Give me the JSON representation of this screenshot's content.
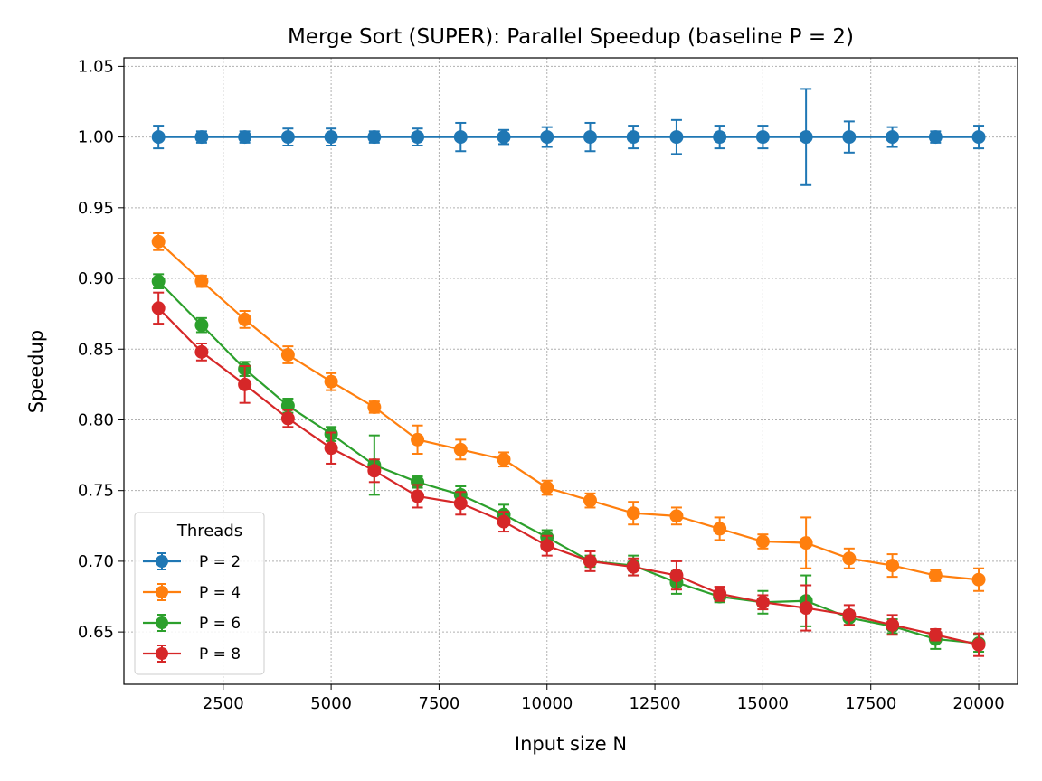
{
  "chart_data": {
    "type": "line",
    "title": "Merge Sort (SUPER): Parallel Speedup (baseline P = 2)",
    "xlabel": "Input size N",
    "ylabel": "Speedup",
    "xlim": [
      200,
      20900
    ],
    "ylim": [
      0.613,
      1.056
    ],
    "xticks": [
      2500,
      5000,
      7500,
      10000,
      12500,
      15000,
      17500,
      20000
    ],
    "xtick_labels": [
      "2500",
      "5000",
      "7500",
      "10000",
      "12500",
      "15000",
      "17500",
      "20000"
    ],
    "yticks": [
      0.65,
      0.7,
      0.75,
      0.8,
      0.85,
      0.9,
      0.95,
      1.0,
      1.05
    ],
    "ytick_labels": [
      "0.65",
      "0.70",
      "0.75",
      "0.80",
      "0.85",
      "0.90",
      "0.95",
      "1.00",
      "1.05"
    ],
    "grid": true,
    "legend_title": "Threads",
    "legend_position": "lower-left",
    "x": [
      1000,
      2000,
      3000,
      4000,
      5000,
      6000,
      7000,
      8000,
      9000,
      10000,
      11000,
      12000,
      13000,
      14000,
      15000,
      16000,
      17000,
      18000,
      19000,
      20000
    ],
    "series": [
      {
        "name": "P = 2",
        "color": "#1f77b4",
        "values": [
          1.0,
          1.0,
          1.0,
          1.0,
          1.0,
          1.0,
          1.0,
          1.0,
          1.0,
          1.0,
          1.0,
          1.0,
          1.0,
          1.0,
          1.0,
          1.0,
          1.0,
          1.0,
          1.0,
          1.0
        ],
        "errors": [
          0.008,
          0.004,
          0.004,
          0.006,
          0.006,
          0.004,
          0.006,
          0.01,
          0.005,
          0.007,
          0.01,
          0.008,
          0.012,
          0.008,
          0.008,
          0.034,
          0.011,
          0.007,
          0.004,
          0.008
        ]
      },
      {
        "name": "P = 4",
        "color": "#ff7f0e",
        "values": [
          0.926,
          0.898,
          0.871,
          0.846,
          0.827,
          0.809,
          0.786,
          0.779,
          0.772,
          0.752,
          0.743,
          0.734,
          0.732,
          0.723,
          0.714,
          0.713,
          0.702,
          0.697,
          0.69,
          0.687
        ],
        "errors": [
          0.006,
          0.004,
          0.006,
          0.006,
          0.006,
          0.004,
          0.01,
          0.007,
          0.005,
          0.005,
          0.005,
          0.008,
          0.006,
          0.008,
          0.005,
          0.018,
          0.007,
          0.008,
          0.004,
          0.008
        ]
      },
      {
        "name": "P = 6",
        "color": "#2ca02c",
        "values": [
          0.898,
          0.867,
          0.836,
          0.81,
          0.79,
          0.768,
          0.756,
          0.747,
          0.733,
          0.717,
          0.7,
          0.697,
          0.685,
          0.675,
          0.671,
          0.672,
          0.66,
          0.654,
          0.645,
          0.642
        ],
        "errors": [
          0.005,
          0.005,
          0.005,
          0.005,
          0.005,
          0.021,
          0.004,
          0.006,
          0.007,
          0.005,
          0.004,
          0.007,
          0.008,
          0.004,
          0.008,
          0.018,
          0.005,
          0.005,
          0.007,
          0.006
        ]
      },
      {
        "name": "P = 8",
        "color": "#d62728",
        "values": [
          0.879,
          0.848,
          0.825,
          0.801,
          0.78,
          0.764,
          0.746,
          0.741,
          0.728,
          0.711,
          0.7,
          0.696,
          0.69,
          0.677,
          0.671,
          0.667,
          0.662,
          0.655,
          0.648,
          0.641
        ],
        "errors": [
          0.011,
          0.006,
          0.013,
          0.006,
          0.011,
          0.008,
          0.008,
          0.008,
          0.007,
          0.007,
          0.007,
          0.006,
          0.01,
          0.005,
          0.005,
          0.016,
          0.007,
          0.007,
          0.004,
          0.008
        ]
      }
    ]
  }
}
